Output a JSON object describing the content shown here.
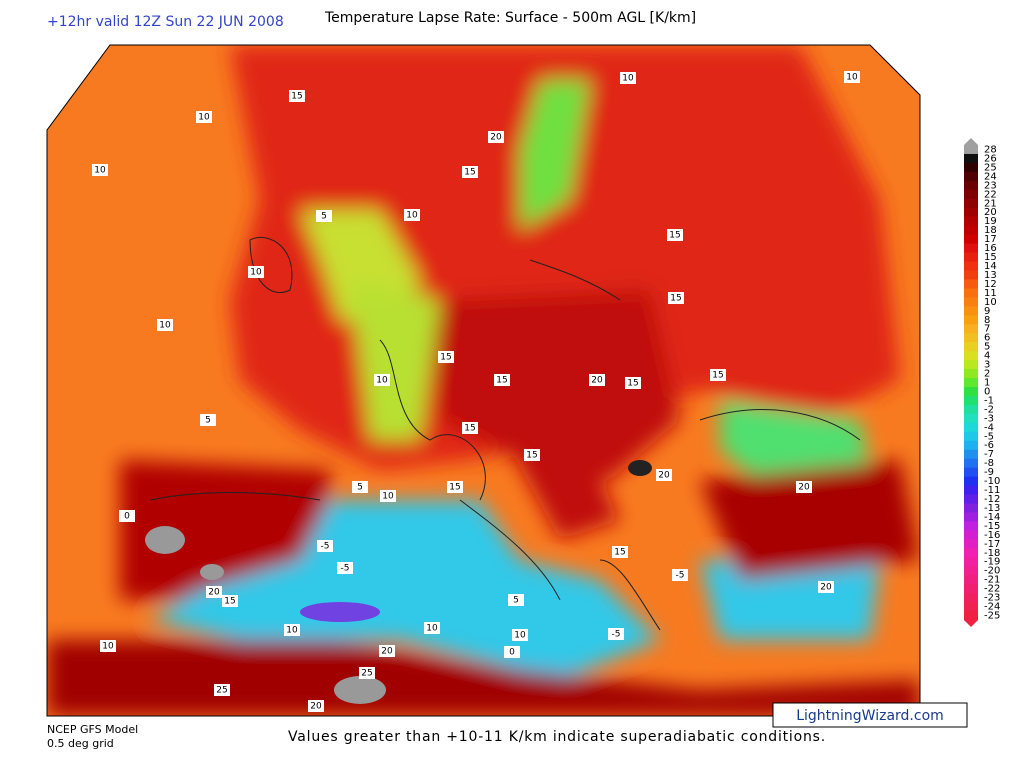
{
  "header": {
    "run": "+12hr valid 12Z Sun 22 JUN 2008",
    "title": "Temperature Lapse Rate: Surface - 500m AGL  [K/km]"
  },
  "colorbar": {
    "labels": [
      28,
      26,
      25,
      24,
      23,
      22,
      21,
      20,
      19,
      18,
      17,
      16,
      15,
      14,
      13,
      12,
      11,
      10,
      9,
      8,
      7,
      6,
      5,
      4,
      3,
      2,
      1,
      0,
      -1,
      -2,
      -3,
      -4,
      -5,
      -6,
      -7,
      -8,
      -9,
      -10,
      -11,
      -12,
      -13,
      -14,
      -15,
      -16,
      -17,
      -18,
      -19,
      -20,
      -21,
      -22,
      -23,
      -24,
      -25
    ],
    "colors": [
      "#a0a0a0",
      "#101010",
      "#300000",
      "#500000",
      "#680000",
      "#800000",
      "#900000",
      "#a00000",
      "#b30000",
      "#c00000",
      "#d00000",
      "#e01010",
      "#e82010",
      "#f03010",
      "#f04010",
      "#f55a10",
      "#f87010",
      "#f88010",
      "#f89010",
      "#f8a010",
      "#f8b020",
      "#f0c020",
      "#e8d020",
      "#d8e020",
      "#b8e820",
      "#90e820",
      "#60e830",
      "#30e040",
      "#20e070",
      "#20e0a0",
      "#20e0c0",
      "#20d8d8",
      "#20c8e8",
      "#20b0f0",
      "#2090f0",
      "#2070f0",
      "#2050f0",
      "#2030f0",
      "#4020f0",
      "#6020e8",
      "#8020e0",
      "#a020e0",
      "#c020e0",
      "#d020d0",
      "#e020c0",
      "#f020b0",
      "#f020a0",
      "#f02090",
      "#f02080",
      "#f02070",
      "#f02060",
      "#f02050",
      "#f02040"
    ]
  },
  "contour_labels": [
    10,
    15,
    10,
    10,
    20,
    10,
    15,
    10,
    15,
    5,
    10,
    10,
    15,
    20,
    15,
    15,
    10,
    15,
    15,
    20,
    15,
    5,
    15,
    10,
    20,
    5,
    -5,
    0,
    20,
    15,
    -5,
    10,
    20,
    25,
    25,
    20,
    10,
    5,
    15,
    10,
    -5,
    0,
    20,
    15,
    -5,
    10
  ],
  "footer": {
    "model": "NCEP GFS Model",
    "grid": "0.5 deg grid",
    "note": "Values greater than +10-11 K/km indicate superadiabatic conditions.",
    "credit": "LightningWizard.com"
  }
}
